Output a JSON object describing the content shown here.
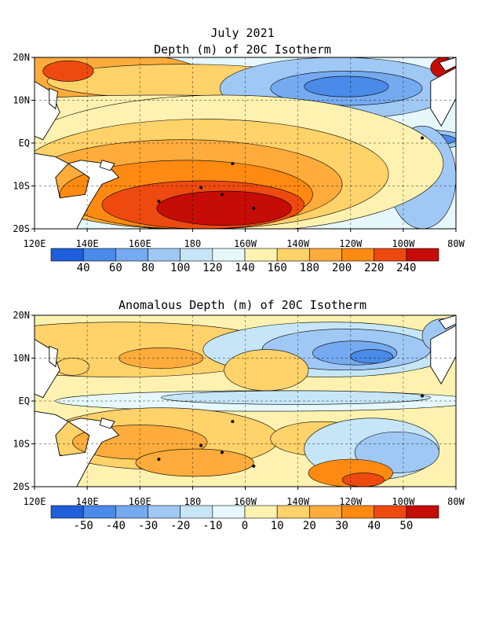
{
  "header": {
    "date": "July 2021"
  },
  "depth_map": {
    "title": "Depth (m) of 20C Isotherm",
    "lat_labels": [
      "20N",
      "10N",
      "EQ",
      "10S",
      "20S"
    ],
    "lon_labels": [
      "120E",
      "140E",
      "160E",
      "180",
      "160W",
      "140W",
      "120W",
      "100W",
      "80W"
    ],
    "colorbar_labels": [
      "40",
      "60",
      "80",
      "100",
      "120",
      "140",
      "160",
      "180",
      "200",
      "220",
      "240"
    ],
    "colors": [
      "#1f5fdc",
      "#4a8ae8",
      "#75aaf0",
      "#a0c8f5",
      "#c6e6f8",
      "#e6f8fb",
      "#fff2b0",
      "#ffd26a",
      "#ffac3c",
      "#ff8a12",
      "#ee4a10",
      "#c60c06"
    ]
  },
  "anomaly_map": {
    "title": "Anomalous Depth (m) of 20C Isotherm",
    "lat_labels": [
      "20N",
      "10N",
      "EQ",
      "10S",
      "20S"
    ],
    "lon_labels": [
      "120E",
      "140E",
      "160E",
      "180",
      "160W",
      "140W",
      "120W",
      "100W",
      "80W"
    ],
    "colorbar_labels": [
      "-50",
      "-40",
      "-30",
      "-20",
      "-10",
      "0",
      "10",
      "20",
      "30",
      "40",
      "50"
    ],
    "colors": [
      "#1f5fdc",
      "#4a8ae8",
      "#75aaf0",
      "#a0c8f5",
      "#c6e6f8",
      "#e6f8fb",
      "#fff2b0",
      "#ffd26a",
      "#ffac3c",
      "#ff8a12",
      "#ee4a10",
      "#c60c06"
    ]
  }
}
